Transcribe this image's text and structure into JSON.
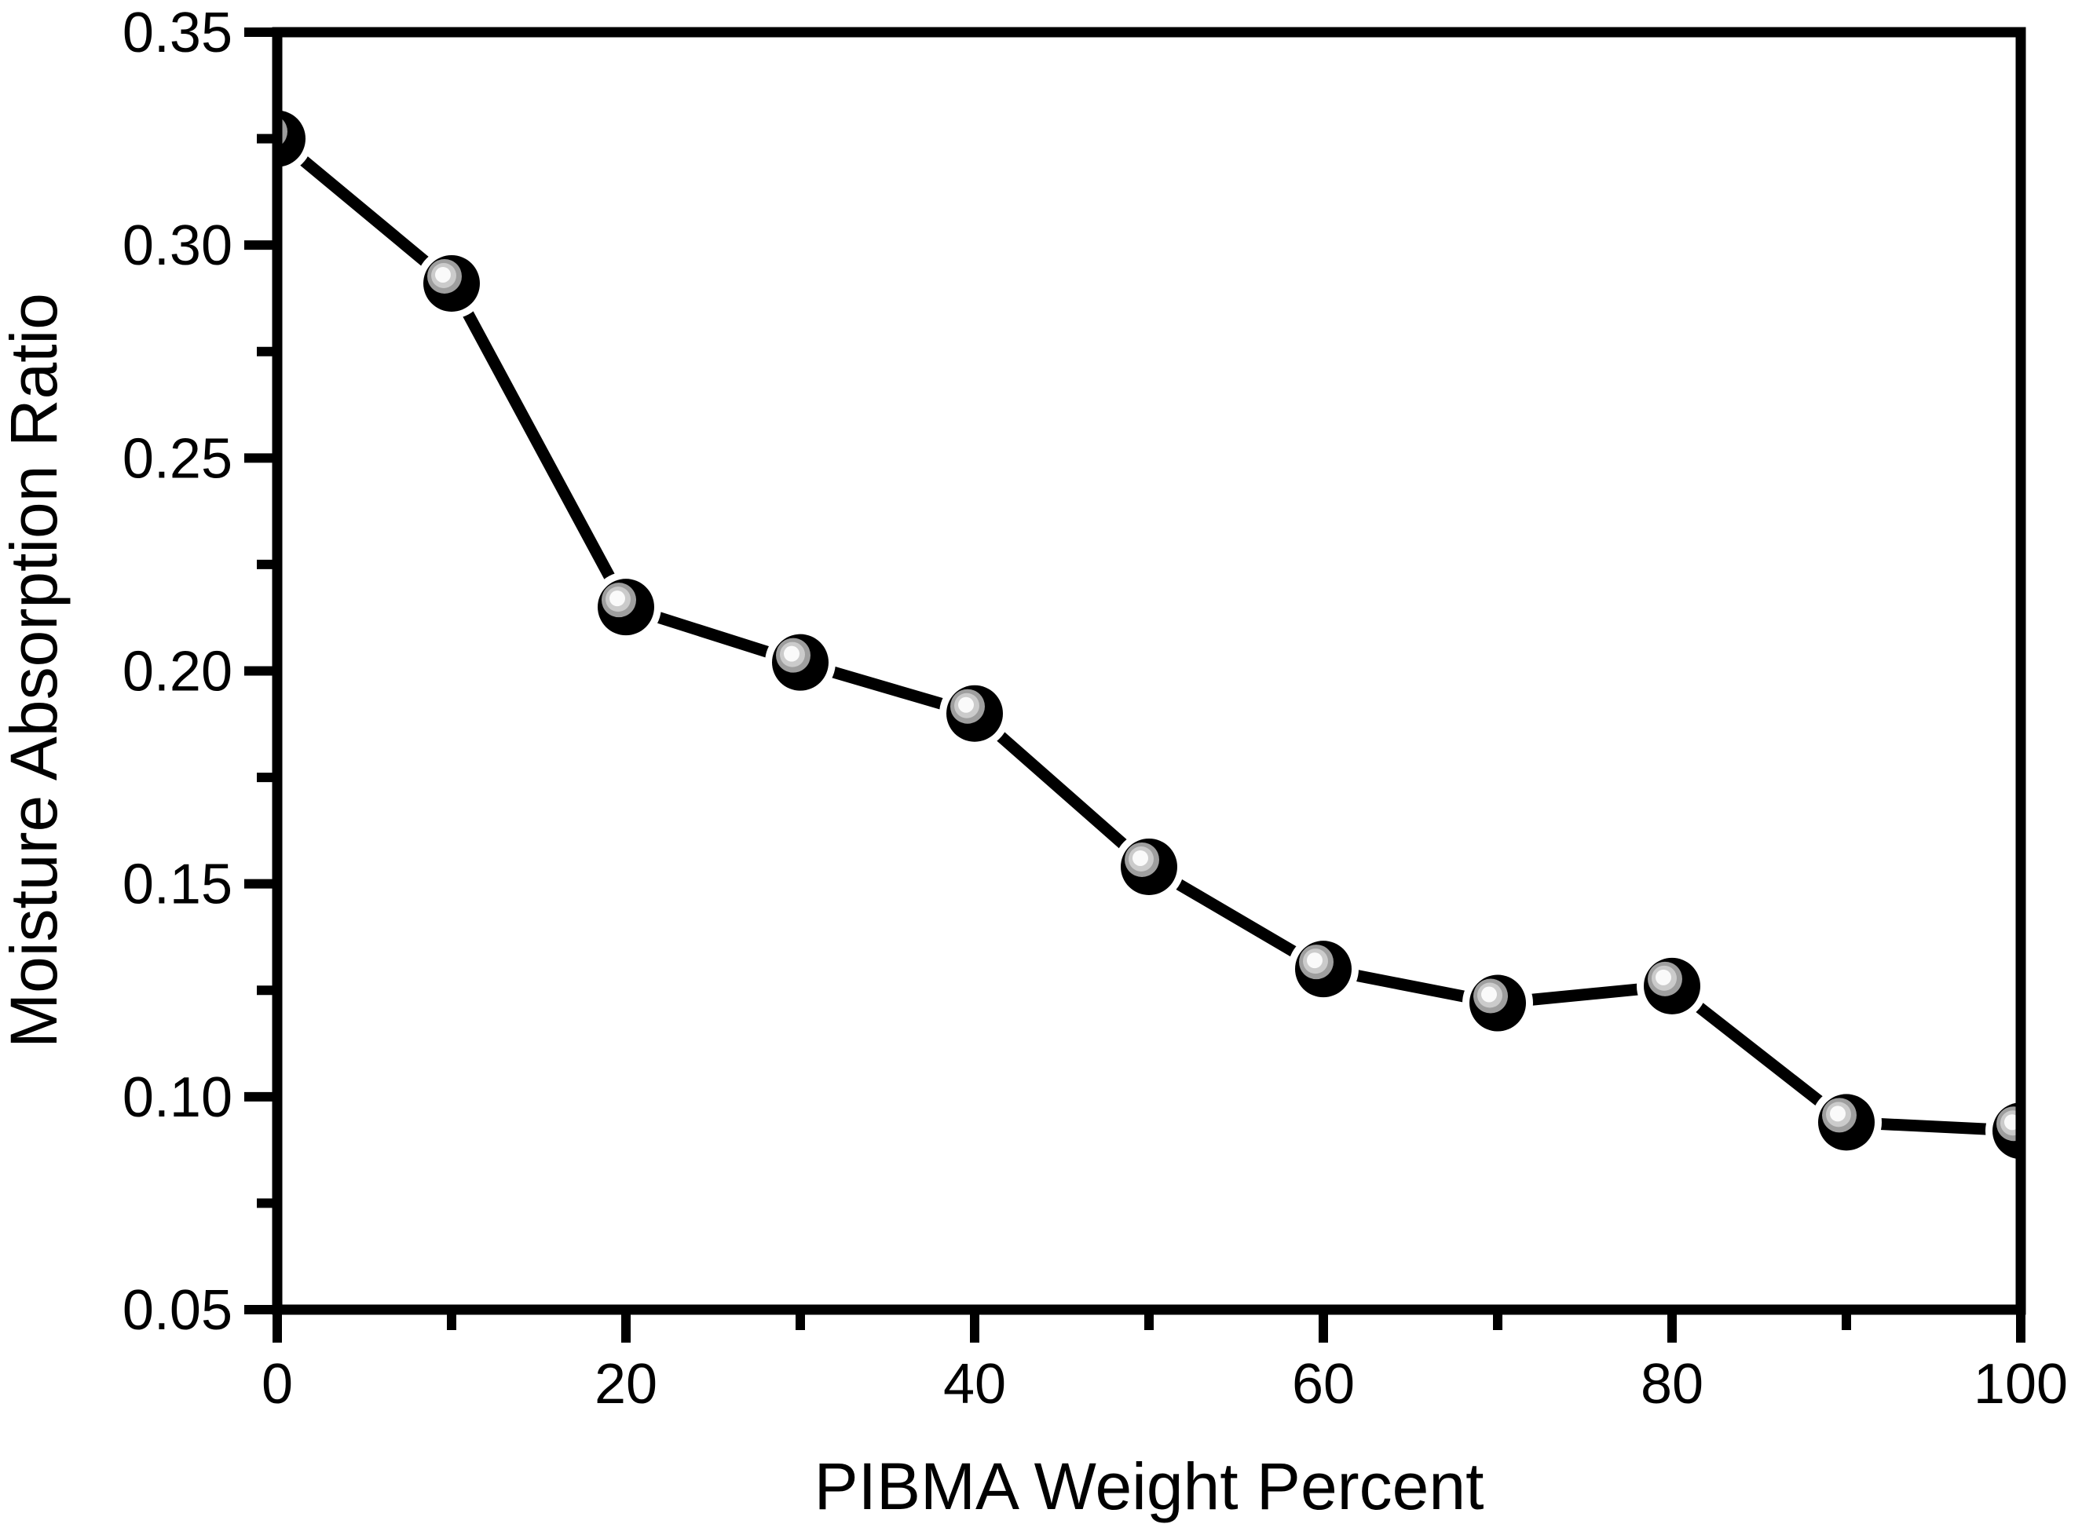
{
  "figure": {
    "background": "#ffffff",
    "foreground": "#000000"
  },
  "chart_data": {
    "type": "line",
    "title": "",
    "xlabel": "PIBMA Weight Percent",
    "ylabel": "Moisture Absorption Ratio",
    "x": [
      0,
      10,
      20,
      30,
      40,
      50,
      60,
      70,
      80,
      90,
      100
    ],
    "series": [
      {
        "name": "moisture-absorption-ratio",
        "values": [
          0.325,
          0.291,
          0.215,
          0.202,
          0.19,
          0.154,
          0.13,
          0.122,
          0.126,
          0.094,
          0.092
        ]
      }
    ],
    "xlim": [
      0,
      100
    ],
    "ylim": [
      0.05,
      0.35
    ],
    "x_major_ticks": [
      0,
      20,
      40,
      60,
      80,
      100
    ],
    "x_tick_labels": [
      "0",
      "20",
      "40",
      "60",
      "80",
      "100"
    ],
    "x_minor_ticks": [
      10,
      30,
      50,
      70,
      90
    ],
    "y_major_ticks": [
      0.05,
      0.1,
      0.15,
      0.2,
      0.25,
      0.3,
      0.35
    ],
    "y_tick_labels": [
      "0.05",
      "0.10",
      "0.15",
      "0.20",
      "0.25",
      "0.30",
      "0.35"
    ],
    "y_minor_ticks": [
      0.075,
      0.125,
      0.175,
      0.225,
      0.275,
      0.325
    ],
    "grid": false,
    "legend_position": "none",
    "line_color": "#000000",
    "marker_style": "3d-sphere",
    "marker_colors": {
      "body": "#000000",
      "halo": "#ffffff",
      "highlight_outer": "#9e9e9e",
      "highlight_mid": "#cbcbcb",
      "highlight_core": "#fafafa"
    }
  }
}
